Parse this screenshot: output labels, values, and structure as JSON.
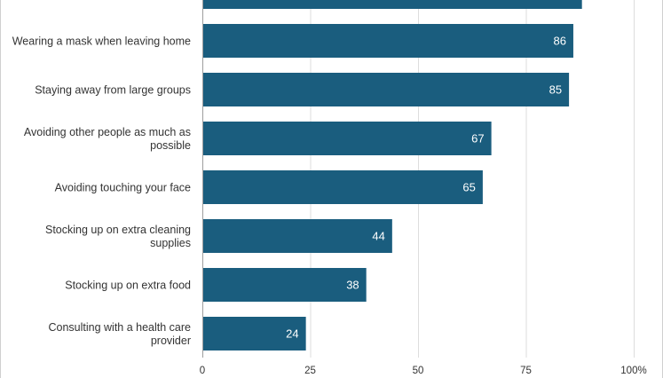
{
  "chart_data": {
    "type": "bar",
    "orientation": "horizontal",
    "categories": [
      "",
      "Wearing a mask when leaving home",
      "Staying away from large groups",
      "Avoiding other people as much as possible",
      "Avoiding touching your face",
      "Stocking up on extra cleaning supplies",
      "Stocking up on extra food",
      "Consulting with a health care provider"
    ],
    "category_lines": [
      [],
      [
        "Wearing a mask when leaving home"
      ],
      [
        "Staying away from large groups"
      ],
      [
        "Avoiding other people as much as",
        "possible"
      ],
      [
        "Avoiding touching your face"
      ],
      [
        "Stocking up on extra cleaning",
        "supplies"
      ],
      [
        "Stocking up on extra food"
      ],
      [
        "Consulting with a health care",
        "provider"
      ]
    ],
    "values": [
      88,
      86,
      85,
      67,
      65,
      44,
      38,
      24
    ],
    "data_labels": [
      "",
      "86",
      "85",
      "67",
      "65",
      "44",
      "38",
      "24"
    ],
    "xlim": [
      0,
      100
    ],
    "ticks": [
      0,
      25,
      50,
      75,
      100
    ],
    "tick_labels": [
      "0",
      "25",
      "50",
      "75",
      "100%"
    ],
    "grid": true,
    "colors": {
      "bar": "#1a5d7e",
      "grid": "#dddddd",
      "text": "#333333",
      "label": "#ffffff"
    }
  }
}
